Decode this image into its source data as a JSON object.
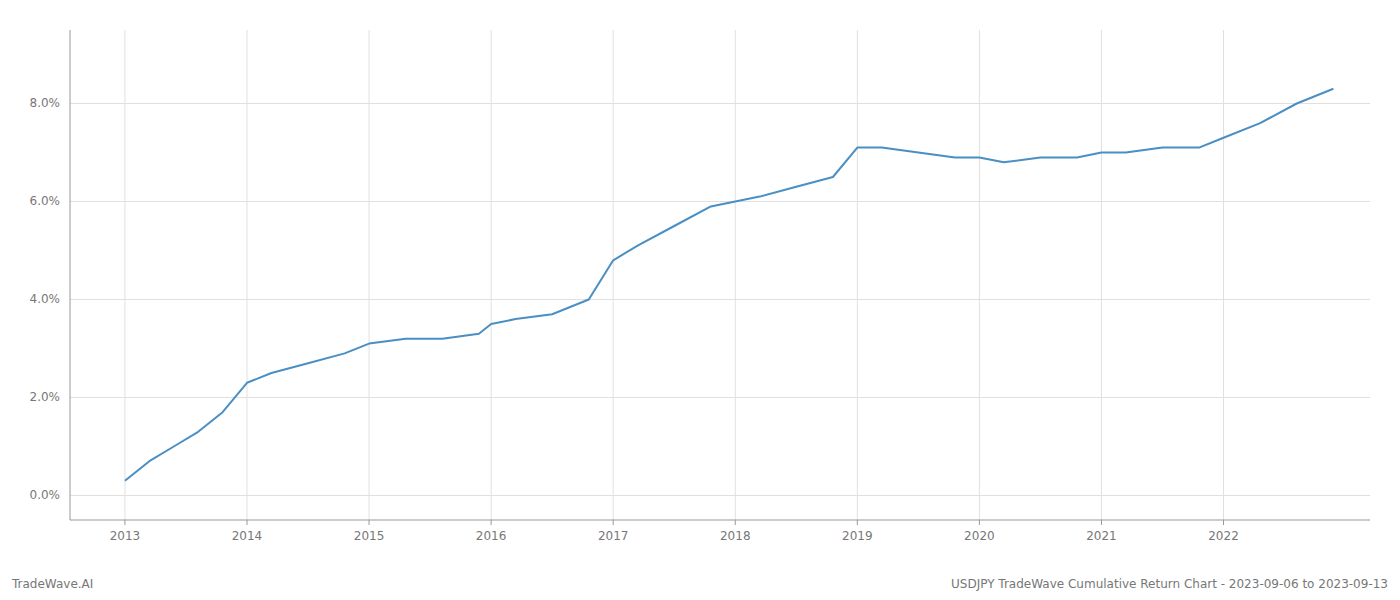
{
  "chart_data": {
    "type": "line",
    "x": [
      2013.0,
      2013.1,
      2013.2,
      2013.4,
      2013.6,
      2013.8,
      2014.0,
      2014.2,
      2014.5,
      2014.8,
      2015.0,
      2015.3,
      2015.6,
      2015.9,
      2016.0,
      2016.2,
      2016.5,
      2016.8,
      2017.0,
      2017.2,
      2017.5,
      2017.8,
      2018.0,
      2018.2,
      2018.5,
      2018.8,
      2019.0,
      2019.2,
      2019.5,
      2019.8,
      2020.0,
      2020.2,
      2020.5,
      2020.8,
      2021.0,
      2021.2,
      2021.5,
      2021.8,
      2022.0,
      2022.3,
      2022.6,
      2022.9
    ],
    "values": [
      0.003,
      0.005,
      0.007,
      0.01,
      0.013,
      0.017,
      0.023,
      0.025,
      0.027,
      0.029,
      0.031,
      0.032,
      0.032,
      0.033,
      0.035,
      0.036,
      0.037,
      0.04,
      0.048,
      0.051,
      0.055,
      0.059,
      0.06,
      0.061,
      0.063,
      0.065,
      0.071,
      0.071,
      0.07,
      0.069,
      0.069,
      0.068,
      0.069,
      0.069,
      0.07,
      0.07,
      0.071,
      0.071,
      0.073,
      0.076,
      0.08,
      0.083
    ],
    "color": "#4a8fc4",
    "xlim": [
      2012.55,
      2023.2
    ],
    "xticks": [
      2013,
      2014,
      2015,
      2016,
      2017,
      2018,
      2019,
      2020,
      2021,
      2022
    ],
    "ylim": [
      -0.005,
      0.095
    ],
    "yticks": [
      {
        "value": 0.0,
        "label": "0.0%"
      },
      {
        "value": 0.02,
        "label": "2.0%"
      },
      {
        "value": 0.04,
        "label": "4.0%"
      },
      {
        "value": 0.06,
        "label": "6.0%"
      },
      {
        "value": 0.08,
        "label": "8.0%"
      }
    ],
    "grid": true,
    "annotations": [
      "TradeWave.AI",
      "USDJPY TradeWave Cumulative Return Chart - 2023-09-06 to 2023-09-13"
    ]
  }
}
